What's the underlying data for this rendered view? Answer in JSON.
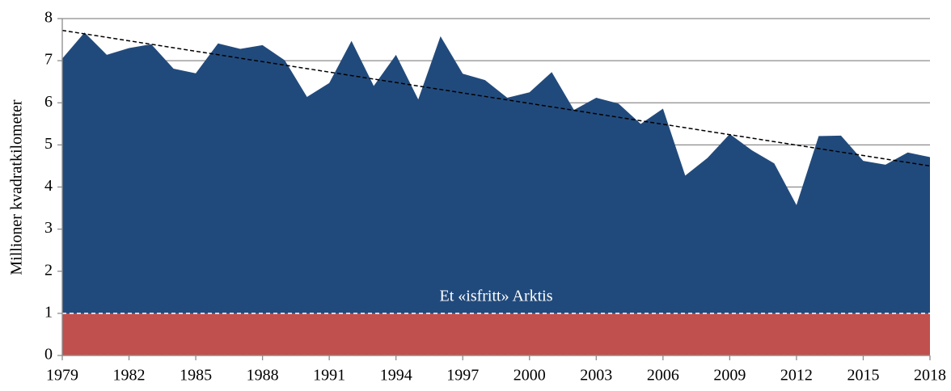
{
  "chart_data": {
    "type": "area",
    "ylabel": "Millioner kvadratkilometer",
    "x": [
      1979,
      1980,
      1981,
      1982,
      1983,
      1984,
      1985,
      1986,
      1987,
      1988,
      1989,
      1990,
      1991,
      1992,
      1993,
      1994,
      1995,
      1996,
      1997,
      1998,
      1999,
      2000,
      2001,
      2002,
      2003,
      2004,
      2005,
      2006,
      2007,
      2008,
      2009,
      2010,
      2011,
      2012,
      2013,
      2014,
      2015,
      2016,
      2017,
      2018
    ],
    "series": [
      {
        "color": "#214a7c",
        "values": [
          7.05,
          7.67,
          7.14,
          7.3,
          7.39,
          6.81,
          6.7,
          7.41,
          7.28,
          7.37,
          7.01,
          6.14,
          6.47,
          7.47,
          6.4,
          7.14,
          6.08,
          7.58,
          6.69,
          6.54,
          6.12,
          6.25,
          6.73,
          5.83,
          6.12,
          5.98,
          5.5,
          5.86,
          4.27,
          4.69,
          5.26,
          4.87,
          4.56,
          3.57,
          5.21,
          5.22,
          4.62,
          4.53,
          4.82,
          4.71
        ]
      }
    ],
    "trend_line": {
      "x": [
        1979,
        2018
      ],
      "values": [
        7.72,
        4.5
      ],
      "color": "#000000"
    },
    "threshold": {
      "value": 1,
      "label": "Et «isfritt» Arktis",
      "color": "#c0504d"
    },
    "xlim": [
      1979,
      2018
    ],
    "xticks": [
      1979,
      1982,
      1985,
      1988,
      1991,
      1994,
      1997,
      2000,
      2003,
      2006,
      2009,
      2012,
      2015,
      2018
    ],
    "ylim": [
      0,
      8
    ],
    "yticks": [
      0,
      1,
      2,
      3,
      4,
      5,
      6,
      7,
      8
    ],
    "grid": true
  }
}
